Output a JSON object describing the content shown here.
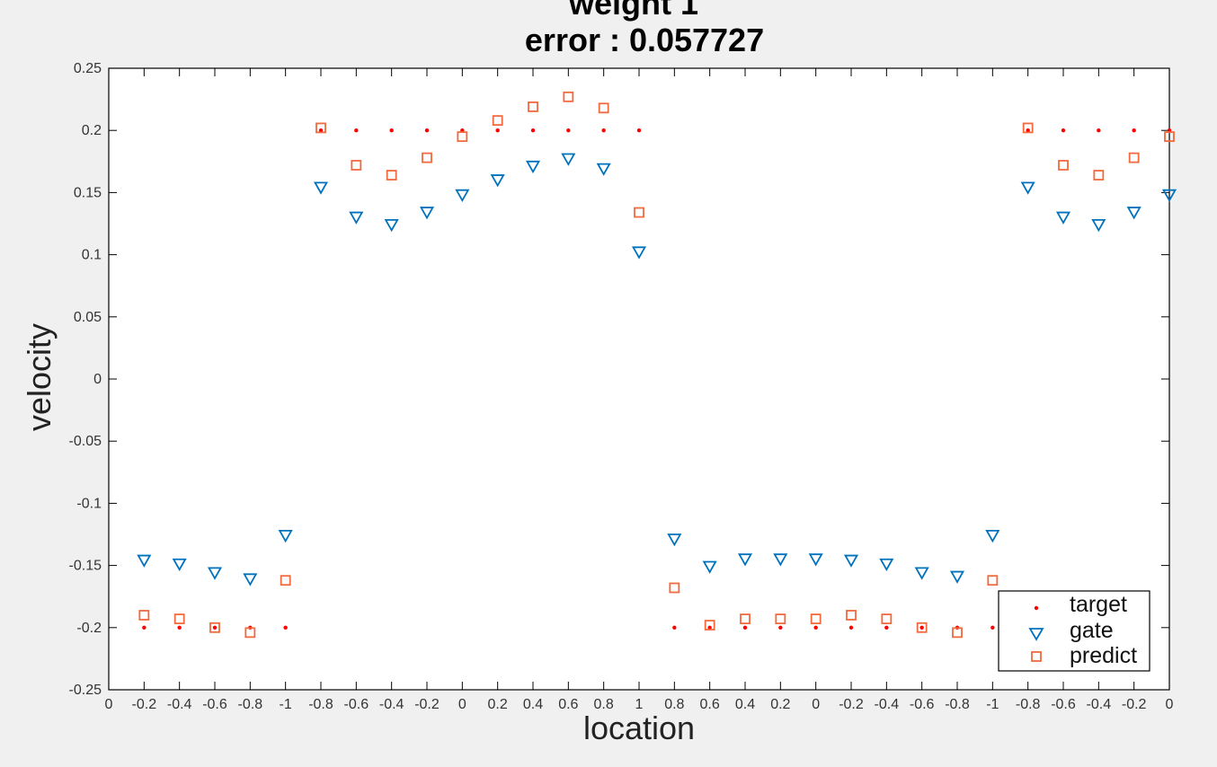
{
  "chart_data": {
    "type": "scatter",
    "title_line1": "weight 1",
    "title_line2": "error : 0.057727",
    "xlabel": "location",
    "ylabel": "velocity",
    "ylim": [
      -0.25,
      0.25
    ],
    "y_ticks": [
      "0.25",
      "0.2",
      "0.15",
      "0.1",
      "0.05",
      "0",
      "-0.05",
      "-0.1",
      "-0.15",
      "-0.2",
      "-0.25"
    ],
    "x_tick_labels": [
      "0",
      "-0.2",
      "-0.4",
      "-0.6",
      "-0.8",
      "-1",
      "-0.8",
      "-0.6",
      "-0.4",
      "-0.2",
      "0",
      "0.2",
      "0.4",
      "0.6",
      "0.8",
      "1",
      "0.8",
      "0.6",
      "0.4",
      "0.2",
      "0",
      "-0.2",
      "-0.4",
      "-0.6",
      "-0.8",
      "-1",
      "-0.8",
      "-0.6",
      "-0.4",
      "-0.2",
      "0"
    ],
    "grid": false,
    "legend_position": "bottom-right",
    "series": [
      {
        "name": "target",
        "marker": "dot",
        "color": "#ff0000",
        "values": [
          null,
          -0.2,
          -0.2,
          -0.2,
          -0.2,
          -0.2,
          0.2,
          0.2,
          0.2,
          0.2,
          0.2,
          0.2,
          0.2,
          0.2,
          0.2,
          0.2,
          -0.2,
          -0.2,
          -0.2,
          -0.2,
          -0.2,
          -0.2,
          -0.2,
          -0.2,
          -0.2,
          -0.2,
          0.2,
          0.2,
          0.2,
          0.2,
          0.2
        ]
      },
      {
        "name": "gate",
        "marker": "triangle-down",
        "color": "#0072bd",
        "values": [
          null,
          -0.146,
          -0.149,
          -0.156,
          -0.161,
          -0.126,
          0.154,
          0.13,
          0.124,
          0.134,
          0.148,
          0.16,
          0.171,
          0.177,
          0.169,
          0.102,
          -0.129,
          -0.151,
          -0.145,
          -0.145,
          -0.145,
          -0.146,
          -0.149,
          -0.156,
          -0.159,
          -0.126,
          0.154,
          0.13,
          0.124,
          0.134,
          0.148
        ]
      },
      {
        "name": "predict",
        "marker": "square",
        "color": "#f26a3d",
        "values": [
          null,
          -0.19,
          -0.193,
          -0.2,
          -0.204,
          -0.162,
          0.202,
          0.172,
          0.164,
          0.178,
          0.195,
          0.208,
          0.219,
          0.227,
          0.218,
          0.134,
          -0.168,
          -0.198,
          -0.193,
          -0.193,
          -0.193,
          -0.19,
          -0.193,
          -0.2,
          -0.204,
          -0.162,
          0.202,
          0.172,
          0.164,
          0.178,
          0.195
        ]
      }
    ]
  }
}
